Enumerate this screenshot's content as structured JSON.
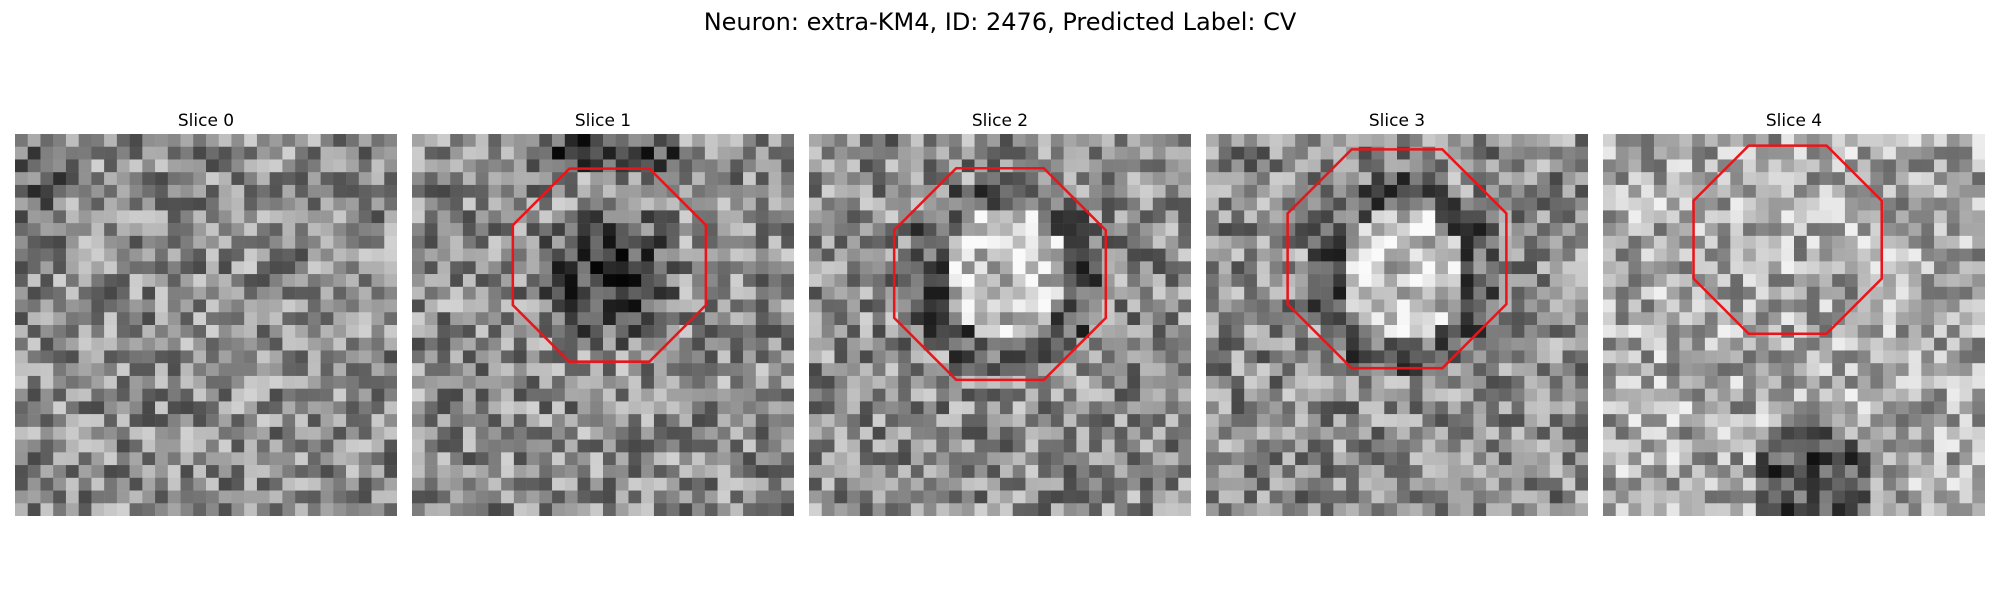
{
  "figure": {
    "title": "Neuron: extra-KM4, ID: 2476, Predicted Label: CV"
  },
  "panels": [
    {
      "title": "Slice 0",
      "tone": "neutral",
      "overlay": false
    },
    {
      "title": "Slice 1",
      "tone": "dark-center",
      "overlay": true
    },
    {
      "title": "Slice 2",
      "tone": "bright-center-dark-ring",
      "overlay": true
    },
    {
      "title": "Slice 3",
      "tone": "bright-center-dark-ring",
      "overlay": true
    },
    {
      "title": "Slice 4",
      "tone": "light",
      "overlay": true
    }
  ],
  "colors": {
    "outline": "#e8161b",
    "background": "#ffffff"
  }
}
